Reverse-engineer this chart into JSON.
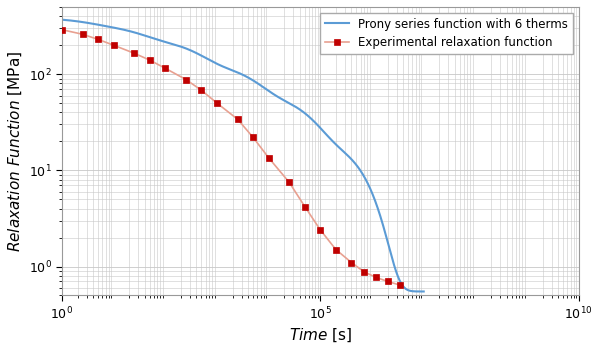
{
  "title": "",
  "xlabel": "Time [s]",
  "ylabel": "Relaxation Function [MPa]",
  "prony_color": "#5B9BD5",
  "exp_color": "#C00000",
  "exp_line_color": "#E8A090",
  "legend_labels": [
    "Prony series function with 6 therms",
    "Experimental relaxation function"
  ],
  "exp_t": [
    1.0,
    2.5,
    5.0,
    10.0,
    25.0,
    50.0,
    100.0,
    250.0,
    500.0,
    1000.0,
    2500.0,
    5000.0,
    10000.0,
    25000.0,
    50000.0,
    100000.0,
    200000.0,
    400000.0,
    700000.0,
    1200000.0,
    2000000.0,
    3500000.0
  ],
  "exp_R": [
    290.0,
    260.0,
    230.0,
    200.0,
    165.0,
    140.0,
    115.0,
    88.0,
    68.0,
    50.0,
    34.0,
    22.0,
    13.5,
    7.5,
    4.2,
    2.4,
    1.5,
    1.1,
    0.88,
    0.77,
    0.7,
    0.64
  ],
  "prony_params": {
    "E_inf": 0.55,
    "E_i": [
      55.0,
      95.0,
      105.0,
      68.0,
      42.0,
      22.0
    ],
    "tau_i": [
      3.0,
      30.0,
      400.0,
      5000.0,
      60000.0,
      700000.0
    ]
  },
  "background_color": "#ffffff",
  "grid_color": "#c8c8c8",
  "fontsize_label": 11,
  "fontsize_tick": 9
}
